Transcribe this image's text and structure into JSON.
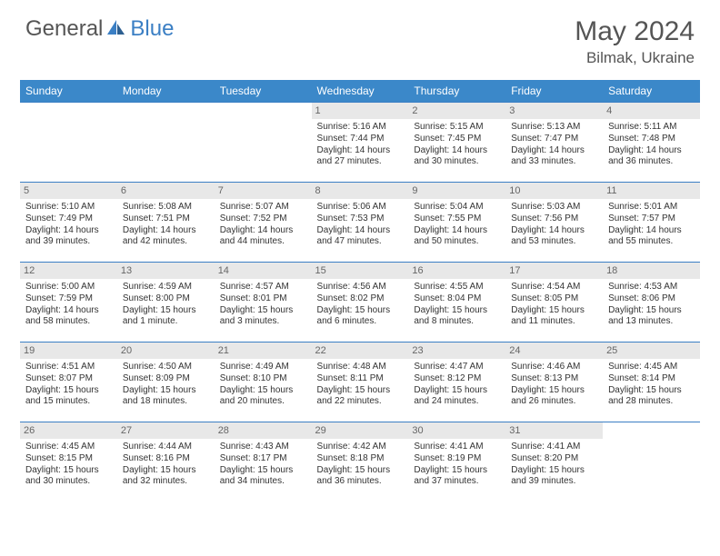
{
  "brand": {
    "name1": "General",
    "name2": "Blue"
  },
  "title": "May 2024",
  "location": "Bilmak, Ukraine",
  "colors": {
    "header_bg": "#3b88c9",
    "border": "#3b7fc4",
    "daynum_bg": "#e8e8e8",
    "text": "#333333",
    "muted": "#555555"
  },
  "weekdays": [
    "Sunday",
    "Monday",
    "Tuesday",
    "Wednesday",
    "Thursday",
    "Friday",
    "Saturday"
  ],
  "weeks": [
    [
      null,
      null,
      null,
      {
        "n": "1",
        "sr": "5:16 AM",
        "ss": "7:44 PM",
        "dl": "14 hours and 27 minutes."
      },
      {
        "n": "2",
        "sr": "5:15 AM",
        "ss": "7:45 PM",
        "dl": "14 hours and 30 minutes."
      },
      {
        "n": "3",
        "sr": "5:13 AM",
        "ss": "7:47 PM",
        "dl": "14 hours and 33 minutes."
      },
      {
        "n": "4",
        "sr": "5:11 AM",
        "ss": "7:48 PM",
        "dl": "14 hours and 36 minutes."
      }
    ],
    [
      {
        "n": "5",
        "sr": "5:10 AM",
        "ss": "7:49 PM",
        "dl": "14 hours and 39 minutes."
      },
      {
        "n": "6",
        "sr": "5:08 AM",
        "ss": "7:51 PM",
        "dl": "14 hours and 42 minutes."
      },
      {
        "n": "7",
        "sr": "5:07 AM",
        "ss": "7:52 PM",
        "dl": "14 hours and 44 minutes."
      },
      {
        "n": "8",
        "sr": "5:06 AM",
        "ss": "7:53 PM",
        "dl": "14 hours and 47 minutes."
      },
      {
        "n": "9",
        "sr": "5:04 AM",
        "ss": "7:55 PM",
        "dl": "14 hours and 50 minutes."
      },
      {
        "n": "10",
        "sr": "5:03 AM",
        "ss": "7:56 PM",
        "dl": "14 hours and 53 minutes."
      },
      {
        "n": "11",
        "sr": "5:01 AM",
        "ss": "7:57 PM",
        "dl": "14 hours and 55 minutes."
      }
    ],
    [
      {
        "n": "12",
        "sr": "5:00 AM",
        "ss": "7:59 PM",
        "dl": "14 hours and 58 minutes."
      },
      {
        "n": "13",
        "sr": "4:59 AM",
        "ss": "8:00 PM",
        "dl": "15 hours and 1 minute."
      },
      {
        "n": "14",
        "sr": "4:57 AM",
        "ss": "8:01 PM",
        "dl": "15 hours and 3 minutes."
      },
      {
        "n": "15",
        "sr": "4:56 AM",
        "ss": "8:02 PM",
        "dl": "15 hours and 6 minutes."
      },
      {
        "n": "16",
        "sr": "4:55 AM",
        "ss": "8:04 PM",
        "dl": "15 hours and 8 minutes."
      },
      {
        "n": "17",
        "sr": "4:54 AM",
        "ss": "8:05 PM",
        "dl": "15 hours and 11 minutes."
      },
      {
        "n": "18",
        "sr": "4:53 AM",
        "ss": "8:06 PM",
        "dl": "15 hours and 13 minutes."
      }
    ],
    [
      {
        "n": "19",
        "sr": "4:51 AM",
        "ss": "8:07 PM",
        "dl": "15 hours and 15 minutes."
      },
      {
        "n": "20",
        "sr": "4:50 AM",
        "ss": "8:09 PM",
        "dl": "15 hours and 18 minutes."
      },
      {
        "n": "21",
        "sr": "4:49 AM",
        "ss": "8:10 PM",
        "dl": "15 hours and 20 minutes."
      },
      {
        "n": "22",
        "sr": "4:48 AM",
        "ss": "8:11 PM",
        "dl": "15 hours and 22 minutes."
      },
      {
        "n": "23",
        "sr": "4:47 AM",
        "ss": "8:12 PM",
        "dl": "15 hours and 24 minutes."
      },
      {
        "n": "24",
        "sr": "4:46 AM",
        "ss": "8:13 PM",
        "dl": "15 hours and 26 minutes."
      },
      {
        "n": "25",
        "sr": "4:45 AM",
        "ss": "8:14 PM",
        "dl": "15 hours and 28 minutes."
      }
    ],
    [
      {
        "n": "26",
        "sr": "4:45 AM",
        "ss": "8:15 PM",
        "dl": "15 hours and 30 minutes."
      },
      {
        "n": "27",
        "sr": "4:44 AM",
        "ss": "8:16 PM",
        "dl": "15 hours and 32 minutes."
      },
      {
        "n": "28",
        "sr": "4:43 AM",
        "ss": "8:17 PM",
        "dl": "15 hours and 34 minutes."
      },
      {
        "n": "29",
        "sr": "4:42 AM",
        "ss": "8:18 PM",
        "dl": "15 hours and 36 minutes."
      },
      {
        "n": "30",
        "sr": "4:41 AM",
        "ss": "8:19 PM",
        "dl": "15 hours and 37 minutes."
      },
      {
        "n": "31",
        "sr": "4:41 AM",
        "ss": "8:20 PM",
        "dl": "15 hours and 39 minutes."
      },
      null
    ]
  ],
  "labels": {
    "sunrise": "Sunrise:",
    "sunset": "Sunset:",
    "daylight": "Daylight:"
  }
}
